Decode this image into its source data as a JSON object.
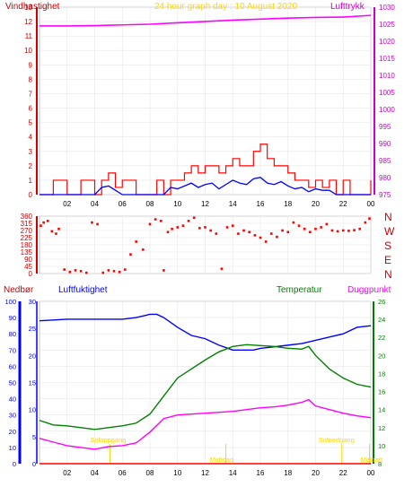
{
  "header": {
    "wind_label": "Vindhastighet",
    "title": "24 hour graph day : 10 August 2020",
    "pressure_label": "Lufttrykk"
  },
  "lower_header": {
    "rain_label": "Nedbør",
    "humidity_label": "Luftfuktighet",
    "temperature_label": "Temperatur",
    "dewpoint_label": "Duggpunkt"
  },
  "direction_letters": [
    "N",
    "W",
    "S",
    "E",
    "N"
  ],
  "annotations": {
    "sunrise": "Soloppgang",
    "sunset": "Solnedgang",
    "midday": "Midtdag",
    "midnight": "Midnatt"
  },
  "colors": {
    "wind": "#ff0000",
    "wind_avg": "#0000ff",
    "pressure": "#ff00ff",
    "direction": "#ff0000",
    "humidity": "#0000ff",
    "temperature": "#008000",
    "dewpoint": "#ff00ff",
    "rain": "#ff0000",
    "sun_marker": "#ffd700",
    "wind_axis": "#cc0000",
    "pressure_axis": "#cc00cc",
    "temp_axis": "#008000",
    "rain_axis": "#0000ff",
    "grid": "#e6e6e6"
  },
  "chart_data": [
    {
      "type": "line",
      "title": "24 hour graph day : 10 August 2020",
      "x_ticks": [
        "02",
        "04",
        "06",
        "08",
        "10",
        "12",
        "14",
        "16",
        "18",
        "20",
        "22",
        "00"
      ],
      "y_left": {
        "label": "Vindhastighet",
        "ticks": [
          0,
          1,
          2,
          3,
          4,
          5,
          6,
          7,
          8,
          9,
          10,
          11,
          12,
          13
        ],
        "range": [
          0,
          13
        ]
      },
      "y_right": {
        "label": "Lufttrykk",
        "ticks": [
          975,
          980,
          985,
          990,
          995,
          1000,
          1005,
          1010,
          1015,
          1020,
          1025,
          1030
        ],
        "range": [
          975,
          1030
        ]
      },
      "grid": true,
      "series": [
        {
          "name": "Vindhastighet",
          "axis": "left",
          "kind": "gust",
          "x": [
            0,
            1,
            2,
            3,
            4,
            4.5,
            5,
            5.5,
            6,
            7,
            8,
            8.5,
            9,
            9.5,
            10,
            10.5,
            11,
            11.5,
            12,
            12.5,
            13,
            13.5,
            14,
            14.5,
            15,
            15.5,
            16,
            16.5,
            17,
            17.5,
            18,
            18.5,
            19,
            19.5,
            20,
            20.5,
            21,
            21.5,
            22,
            22.5,
            23,
            23.5,
            24
          ],
          "y": [
            0,
            1,
            0,
            1,
            0,
            1,
            1.5,
            0.5,
            1,
            0,
            0,
            1,
            0,
            1,
            1,
            1.5,
            2,
            1.5,
            2,
            2,
            1.5,
            2,
            2.5,
            2,
            2,
            3,
            3.5,
            2.5,
            2,
            2,
            1.5,
            1,
            1,
            0.5,
            1,
            0.5,
            1,
            0,
            1,
            0,
            0,
            0,
            1
          ]
        },
        {
          "name": "Vindhastighet",
          "axis": "left",
          "kind": "average",
          "x": [
            0,
            4,
            4.5,
            5,
            5.5,
            6,
            9,
            9.5,
            10,
            10.5,
            11,
            11.5,
            12,
            12.5,
            13,
            13.5,
            14,
            14.5,
            15,
            15.5,
            16,
            16.5,
            17,
            17.5,
            18,
            18.5,
            19,
            19.5,
            20,
            20.5,
            21,
            21.5,
            22,
            24
          ],
          "y": [
            0,
            0,
            0.5,
            0.6,
            0.3,
            0,
            0,
            0.5,
            0.4,
            0.6,
            0.8,
            0.5,
            0.7,
            0.8,
            0.4,
            0.7,
            1.0,
            0.8,
            0.7,
            1.1,
            1.2,
            0.8,
            0.7,
            0.9,
            0.6,
            0.4,
            0.5,
            0.2,
            0.4,
            0.3,
            0.3,
            0,
            0,
            0
          ]
        },
        {
          "name": "Lufttrykk",
          "axis": "right",
          "x": [
            0,
            2,
            4,
            6,
            8,
            10,
            12,
            14,
            16,
            18,
            20,
            22,
            24
          ],
          "y": [
            1024.5,
            1024.5,
            1024.6,
            1024.8,
            1025,
            1025.4,
            1025.8,
            1026.2,
            1026.5,
            1026.8,
            1027,
            1027.1,
            1027.6
          ]
        }
      ]
    },
    {
      "type": "scatter",
      "name": "wind direction",
      "y_ticks": [
        0,
        45,
        90,
        135,
        180,
        225,
        270,
        315,
        360
      ],
      "range": [
        0,
        360
      ],
      "x_ticks": [
        "02",
        "04",
        "06",
        "08",
        "10",
        "12",
        "14",
        "16",
        "18",
        "20",
        "22",
        "00"
      ],
      "grid": true,
      "points": [
        [
          0.1,
          300
        ],
        [
          0.3,
          320
        ],
        [
          0.6,
          330
        ],
        [
          0.9,
          265
        ],
        [
          1.2,
          250
        ],
        [
          1.4,
          280
        ],
        [
          1.8,
          25
        ],
        [
          2.2,
          10
        ],
        [
          2.6,
          20
        ],
        [
          3.0,
          15
        ],
        [
          3.4,
          5
        ],
        [
          3.8,
          320
        ],
        [
          4.2,
          310
        ],
        [
          4.6,
          5
        ],
        [
          5.0,
          20
        ],
        [
          5.4,
          15
        ],
        [
          5.8,
          10
        ],
        [
          6.2,
          25
        ],
        [
          6.6,
          120
        ],
        [
          7.0,
          200
        ],
        [
          7.5,
          150
        ],
        [
          8.0,
          310
        ],
        [
          8.4,
          340
        ],
        [
          8.8,
          330
        ],
        [
          9.0,
          20
        ],
        [
          9.3,
          260
        ],
        [
          9.6,
          280
        ],
        [
          10.0,
          290
        ],
        [
          10.4,
          300
        ],
        [
          10.8,
          330
        ],
        [
          11.2,
          350
        ],
        [
          11.6,
          285
        ],
        [
          12.0,
          290
        ],
        [
          12.4,
          270
        ],
        [
          12.8,
          250
        ],
        [
          13.2,
          30
        ],
        [
          13.6,
          290
        ],
        [
          14.0,
          300
        ],
        [
          14.4,
          250
        ],
        [
          14.8,
          270
        ],
        [
          15.2,
          260
        ],
        [
          15.6,
          240
        ],
        [
          16.0,
          225
        ],
        [
          16.4,
          200
        ],
        [
          16.8,
          250
        ],
        [
          17.2,
          230
        ],
        [
          17.6,
          270
        ],
        [
          18.0,
          260
        ],
        [
          18.4,
          320
        ],
        [
          18.8,
          300
        ],
        [
          19.2,
          280
        ],
        [
          19.6,
          260
        ],
        [
          20.0,
          280
        ],
        [
          20.4,
          290
        ],
        [
          20.8,
          310
        ],
        [
          21.2,
          270
        ],
        [
          21.6,
          265
        ],
        [
          22.0,
          270
        ],
        [
          22.4,
          268
        ],
        [
          22.8,
          272
        ],
        [
          23.2,
          280
        ],
        [
          23.6,
          320
        ],
        [
          23.9,
          345
        ]
      ]
    },
    {
      "type": "line",
      "x_ticks": [
        "02",
        "04",
        "06",
        "08",
        "10",
        "12",
        "14",
        "16",
        "18",
        "20",
        "22",
        "00"
      ],
      "y_left": {
        "label": "Luftfuktighet",
        "ticks": [
          0,
          10,
          20,
          30,
          40,
          50,
          60,
          70,
          80,
          90,
          100
        ],
        "range": [
          0,
          100
        ]
      },
      "y_rain": {
        "label": "Nedbør",
        "ticks": [
          0,
          5,
          10,
          15,
          20,
          25,
          30
        ],
        "range": [
          0,
          30
        ]
      },
      "y_right": {
        "label": "Temperatur",
        "ticks": [
          8,
          10,
          12,
          14,
          16,
          18,
          20,
          22,
          24,
          26
        ],
        "range": [
          8,
          26
        ]
      },
      "grid": true,
      "series": [
        {
          "name": "Luftfuktighet",
          "axis": "left",
          "x": [
            0,
            2,
            4,
            6,
            7,
            7.5,
            8,
            8.5,
            9,
            10,
            11,
            12,
            13,
            14,
            14.5,
            15,
            15.5,
            16,
            17,
            18,
            19,
            20,
            21,
            22,
            23,
            24
          ],
          "y": [
            88,
            89,
            89,
            89,
            90,
            91,
            92,
            92,
            90,
            84,
            79,
            77,
            73,
            70,
            70,
            70,
            70,
            71,
            72,
            73,
            74,
            76,
            78,
            80,
            84,
            85
          ]
        },
        {
          "name": "Temperatur",
          "axis": "right",
          "x": [
            0,
            1,
            2,
            3,
            4,
            5,
            6,
            7,
            8,
            9,
            10,
            11,
            12,
            13,
            14,
            15,
            16,
            17,
            18,
            19,
            19.5,
            20,
            21,
            22,
            23,
            24
          ],
          "y": [
            12.8,
            12.3,
            12.2,
            12.0,
            11.8,
            12.0,
            12.2,
            12.5,
            13.5,
            15.5,
            17.5,
            18.5,
            19.5,
            20.4,
            21.0,
            21.2,
            21.1,
            21.0,
            20.8,
            20.7,
            21.0,
            20.0,
            18.5,
            17.5,
            16.8,
            16.5
          ]
        },
        {
          "name": "Duggpunkt",
          "axis": "right",
          "x": [
            0,
            1,
            2,
            3,
            4,
            5,
            6,
            7,
            8,
            9,
            10,
            11,
            12,
            13,
            14,
            15,
            16,
            17,
            18,
            19,
            19.5,
            20,
            21,
            22,
            23,
            24
          ],
          "y": [
            10.8,
            10.4,
            10.0,
            9.8,
            9.6,
            9.9,
            10.0,
            10.3,
            11.5,
            13.0,
            13.4,
            13.5,
            13.6,
            13.7,
            13.8,
            14.0,
            14.2,
            14.3,
            14.5,
            14.8,
            15.1,
            14.4,
            14.0,
            13.6,
            13.3,
            13.1
          ]
        },
        {
          "name": "Nedbør",
          "axis": "rain",
          "x": [
            0,
            24
          ],
          "y": [
            0,
            0
          ]
        }
      ],
      "markers": [
        {
          "label": "Soloppgang",
          "x": 5.1
        },
        {
          "label": "Midtdag",
          "x": 13.5
        },
        {
          "label": "Solnedgang",
          "x": 21.9
        },
        {
          "label": "Midnatt",
          "x": 23.9
        }
      ]
    }
  ]
}
